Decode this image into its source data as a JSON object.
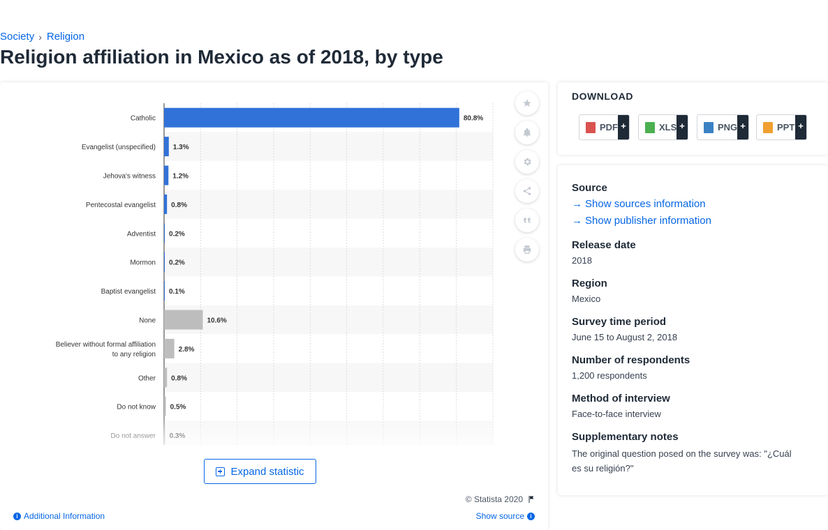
{
  "breadcrumb": {
    "items": [
      "Society",
      "Religion"
    ],
    "separator": "›"
  },
  "page_title": "Religion affiliation in Mexico as of 2018, by type",
  "chart_data": {
    "type": "bar",
    "orientation": "horizontal",
    "title": "",
    "xlabel": "",
    "ylabel": "",
    "xlim": [
      0,
      90
    ],
    "grid": true,
    "categories": [
      "Catholic",
      "Evangelist (unspecified)",
      "Jehova's witness",
      "Pentecostal evangelist",
      "Adventist",
      "Mormon",
      "Baptist evangelist",
      "None",
      "Believer without formal affiliation to any religion",
      "Other",
      "Do not know",
      "Do not answer"
    ],
    "values": [
      80.8,
      1.3,
      1.2,
      0.8,
      0.2,
      0.2,
      0.1,
      10.6,
      2.8,
      0.8,
      0.5,
      0.3
    ],
    "value_labels": [
      "80.8%",
      "1.3%",
      "1.2%",
      "0.8%",
      "0.2%",
      "0.2%",
      "0.1%",
      "10.6%",
      "2.8%",
      "0.8%",
      "0.5%",
      "0.3%"
    ],
    "bar_colors": [
      "#3172d8",
      "#3172d8",
      "#3172d8",
      "#3172d8",
      "#3172d8",
      "#3172d8",
      "#3172d8",
      "#bdbdbd",
      "#bdbdbd",
      "#bdbdbd",
      "#bdbdbd",
      "#bdbdbd"
    ],
    "unit": "%"
  },
  "toolbar": {
    "icons": [
      "star-icon",
      "bell-icon",
      "gear-icon",
      "share-icon",
      "quote-icon",
      "print-icon"
    ]
  },
  "expand_label": "Expand statistic",
  "copyright": "© Statista 2020",
  "additional_info_label": "Additional Information",
  "show_source_label": "Show source",
  "download": {
    "title": "DOWNLOAD",
    "buttons": [
      {
        "label": "PDF",
        "color": "#d9534f"
      },
      {
        "label": "XLS",
        "color": "#4caf50"
      },
      {
        "label": "PNG",
        "color": "#3b82c4"
      },
      {
        "label": "PPT",
        "color": "#f0a030"
      }
    ],
    "plus": "+"
  },
  "source_panel": {
    "source_heading": "Source",
    "show_sources": "Show sources information",
    "show_publisher": "Show publisher information",
    "release_date_heading": "Release date",
    "release_date": "2018",
    "region_heading": "Region",
    "region": "Mexico",
    "survey_period_heading": "Survey time period",
    "survey_period": "June 15 to August 2, 2018",
    "respondents_heading": "Number of respondents",
    "respondents": "1,200 respondents",
    "method_heading": "Method of interview",
    "method": "Face-to-face interview",
    "notes_heading": "Supplementary notes",
    "notes": "The original question posed on the survey was: \"¿Cuál es su religión?\""
  }
}
